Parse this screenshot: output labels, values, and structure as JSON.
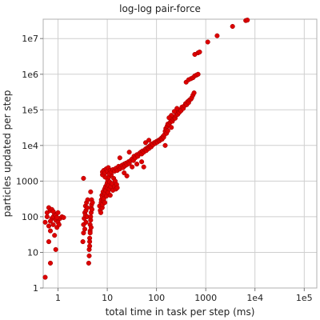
{
  "chart_data": {
    "type": "scatter",
    "title": "log-log pair-force",
    "xlabel": "total time in task per step (ms)",
    "ylabel": "particles updated per step",
    "xscale": "log",
    "yscale": "log",
    "xlim": [
      0.5,
      180000
    ],
    "ylim": [
      1,
      35000000
    ],
    "grid": true,
    "marker_color": "#dd0000",
    "x_ticks": [
      {
        "value": 1,
        "label": "1"
      },
      {
        "value": 10,
        "label": "10"
      },
      {
        "value": 100,
        "label": "100"
      },
      {
        "value": 1000,
        "label": "1000"
      },
      {
        "value": 10000,
        "label": "1e4"
      },
      {
        "value": 100000,
        "label": "1e5"
      }
    ],
    "y_ticks": [
      {
        "value": 1,
        "label": "1"
      },
      {
        "value": 10,
        "label": "10"
      },
      {
        "value": 100,
        "label": "100"
      },
      {
        "value": 1000,
        "label": "1000"
      },
      {
        "value": 10000,
        "label": "1e4"
      },
      {
        "value": 100000,
        "label": "1e5"
      },
      {
        "value": 1000000,
        "label": "1e6"
      },
      {
        "value": 10000000,
        "label": "1e7"
      }
    ],
    "points": [
      [
        0.55,
        2
      ],
      [
        0.7,
        5
      ],
      [
        0.9,
        12
      ],
      [
        0.65,
        20
      ],
      [
        0.55,
        70
      ],
      [
        0.6,
        100
      ],
      [
        0.6,
        130
      ],
      [
        0.65,
        55
      ],
      [
        0.65,
        180
      ],
      [
        0.7,
        40
      ],
      [
        0.7,
        150
      ],
      [
        0.75,
        90
      ],
      [
        0.75,
        160
      ],
      [
        0.8,
        100
      ],
      [
        0.8,
        60
      ],
      [
        0.85,
        30
      ],
      [
        0.85,
        120
      ],
      [
        0.9,
        80
      ],
      [
        0.9,
        110
      ],
      [
        0.95,
        50
      ],
      [
        1.0,
        70
      ],
      [
        1.0,
        130
      ],
      [
        1.1,
        90
      ],
      [
        1.2,
        100
      ],
      [
        0.7,
        75
      ],
      [
        0.8,
        140
      ],
      [
        0.95,
        95
      ],
      [
        1.05,
        60
      ],
      [
        1.3,
        95
      ],
      [
        3.2,
        20
      ],
      [
        3.3,
        35
      ],
      [
        3.3,
        60
      ],
      [
        3.4,
        90
      ],
      [
        3.5,
        130
      ],
      [
        3.5,
        45
      ],
      [
        3.6,
        110
      ],
      [
        3.6,
        200
      ],
      [
        3.7,
        70
      ],
      [
        3.7,
        150
      ],
      [
        3.8,
        250
      ],
      [
        3.9,
        100
      ],
      [
        3.9,
        180
      ],
      [
        4.0,
        300
      ],
      [
        3.3,
        1200
      ],
      [
        4.2,
        5
      ],
      [
        4.3,
        8
      ],
      [
        4.3,
        12
      ],
      [
        4.4,
        15
      ],
      [
        4.4,
        25
      ],
      [
        4.5,
        40
      ],
      [
        4.5,
        60
      ],
      [
        4.6,
        80
      ],
      [
        4.6,
        100
      ],
      [
        4.7,
        130
      ],
      [
        4.7,
        180
      ],
      [
        4.8,
        220
      ],
      [
        4.8,
        300
      ],
      [
        4.9,
        160
      ],
      [
        5.0,
        250
      ],
      [
        4.6,
        500
      ],
      [
        4.4,
        20
      ],
      [
        4.5,
        35
      ],
      [
        4.7,
        50
      ],
      [
        7.0,
        200
      ],
      [
        7.2,
        150
      ],
      [
        7.4,
        130
      ],
      [
        7.5,
        250
      ],
      [
        7.6,
        300
      ],
      [
        7.8,
        400
      ],
      [
        7.9,
        180
      ],
      [
        8.0,
        220
      ],
      [
        8.0,
        350
      ],
      [
        8.2,
        500
      ],
      [
        8.4,
        280
      ],
      [
        8.5,
        320
      ],
      [
        8.6,
        420
      ],
      [
        8.8,
        600
      ],
      [
        8.9,
        250
      ],
      [
        9.0,
        450
      ],
      [
        9.2,
        700
      ],
      [
        9.4,
        550
      ],
      [
        9.6,
        380
      ],
      [
        9.8,
        800
      ],
      [
        10.0,
        650
      ],
      [
        10.0,
        900
      ],
      [
        10.2,
        1100
      ],
      [
        10.4,
        480
      ],
      [
        10.6,
        750
      ],
      [
        10.8,
        1300
      ],
      [
        11.0,
        600
      ],
      [
        11.2,
        950
      ],
      [
        11.5,
        400
      ],
      [
        11.8,
        700
      ],
      [
        12.0,
        1500
      ],
      [
        12.5,
        850
      ],
      [
        13.0,
        550
      ],
      [
        13.5,
        1200
      ],
      [
        14.0,
        700
      ],
      [
        14.5,
        1000
      ],
      [
        15.0,
        600
      ],
      [
        15.5,
        800
      ],
      [
        16.0,
        650
      ],
      [
        9.0,
        1300
      ],
      [
        8.0,
        1500
      ],
      [
        8.0,
        1800
      ],
      [
        8.5,
        2000
      ],
      [
        9.0,
        1700
      ],
      [
        9.5,
        2200
      ],
      [
        10.0,
        1900
      ],
      [
        10.5,
        2400
      ],
      [
        11.0,
        1600
      ],
      [
        11.5,
        2000
      ],
      [
        12.0,
        1800
      ],
      [
        13.0,
        2100
      ],
      [
        14.0,
        1900
      ],
      [
        15.0,
        2300
      ],
      [
        16.0,
        2000
      ],
      [
        17.0,
        2600
      ],
      [
        18.0,
        2200
      ],
      [
        19.0,
        2500
      ],
      [
        20.0,
        2800
      ],
      [
        21.0,
        2400
      ],
      [
        22.0,
        3000
      ],
      [
        23.0,
        2700
      ],
      [
        24.0,
        3200
      ],
      [
        25.0,
        2900
      ],
      [
        27.0,
        3500
      ],
      [
        28.0,
        3100
      ],
      [
        30.0,
        3800
      ],
      [
        32.0,
        4200
      ],
      [
        34.0,
        3800
      ],
      [
        35.0,
        5000
      ],
      [
        37.0,
        4500
      ],
      [
        40.0,
        5500
      ],
      [
        42.0,
        5000
      ],
      [
        45.0,
        6000
      ],
      [
        48.0,
        6500
      ],
      [
        50.0,
        5800
      ],
      [
        52.0,
        7000
      ],
      [
        55.0,
        6500
      ],
      [
        58.0,
        7500
      ],
      [
        60.0,
        8000
      ],
      [
        62.0,
        7200
      ],
      [
        65.0,
        8500
      ],
      [
        68.0,
        9000
      ],
      [
        70.0,
        8200
      ],
      [
        72.0,
        9500
      ],
      [
        75.0,
        10000
      ],
      [
        78.0,
        9200
      ],
      [
        80.0,
        11000
      ],
      [
        85.0,
        10500
      ],
      [
        90.0,
        12000
      ],
      [
        95.0,
        11500
      ],
      [
        100.0,
        13000
      ],
      [
        105.0,
        12500
      ],
      [
        110.0,
        14000
      ],
      [
        115.0,
        13500
      ],
      [
        120.0,
        15000
      ],
      [
        125.0,
        16000
      ],
      [
        130.0,
        15000
      ],
      [
        135.0,
        18000
      ],
      [
        140.0,
        17000
      ],
      [
        145.0,
        20000
      ],
      [
        150.0,
        10000
      ],
      [
        32.0,
        2500
      ],
      [
        40.0,
        3000
      ],
      [
        50.0,
        3500
      ],
      [
        55.0,
        2500
      ],
      [
        60.0,
        12000
      ],
      [
        70.0,
        14000
      ],
      [
        28.0,
        6500
      ],
      [
        18.0,
        4500
      ],
      [
        22.0,
        1700
      ],
      [
        25.0,
        1400
      ],
      [
        150.0,
        25000
      ],
      [
        155.0,
        30000
      ],
      [
        160.0,
        28000
      ],
      [
        165.0,
        35000
      ],
      [
        170.0,
        40000
      ],
      [
        180.0,
        38000
      ],
      [
        190.0,
        45000
      ],
      [
        200.0,
        50000
      ],
      [
        210.0,
        48000
      ],
      [
        220.0,
        55000
      ],
      [
        230.0,
        60000
      ],
      [
        240.0,
        58000
      ],
      [
        250.0,
        70000
      ],
      [
        260.0,
        80000
      ],
      [
        270.0,
        75000
      ],
      [
        280.0,
        90000
      ],
      [
        290.0,
        85000
      ],
      [
        300.0,
        100000
      ],
      [
        315.0,
        95000
      ],
      [
        330.0,
        120000
      ],
      [
        350.0,
        110000
      ],
      [
        370.0,
        130000
      ],
      [
        390.0,
        150000
      ],
      [
        410.0,
        140000
      ],
      [
        430.0,
        170000
      ],
      [
        450.0,
        160000
      ],
      [
        470.0,
        190000
      ],
      [
        500.0,
        200000
      ],
      [
        520.0,
        220000
      ],
      [
        550.0,
        260000
      ],
      [
        580.0,
        300000
      ],
      [
        200.0,
        70000
      ],
      [
        230.0,
        90000
      ],
      [
        260.0,
        110000
      ],
      [
        180.0,
        60000
      ],
      [
        160.0,
        22000
      ],
      [
        170.0,
        26000
      ],
      [
        200.0,
        32000
      ],
      [
        400.0,
        600000
      ],
      [
        450.0,
        700000
      ],
      [
        500.0,
        750000
      ],
      [
        550.0,
        800000
      ],
      [
        600.0,
        900000
      ],
      [
        650.0,
        950000
      ],
      [
        700.0,
        1000000
      ],
      [
        600.0,
        3600000
      ],
      [
        700.0,
        4000000
      ],
      [
        750.0,
        4200000
      ],
      [
        1700.0,
        12000000
      ],
      [
        1100.0,
        8000000
      ],
      [
        3500.0,
        22000000
      ],
      [
        6500.0,
        32000000
      ],
      [
        7000.0,
        33000000
      ]
    ]
  }
}
